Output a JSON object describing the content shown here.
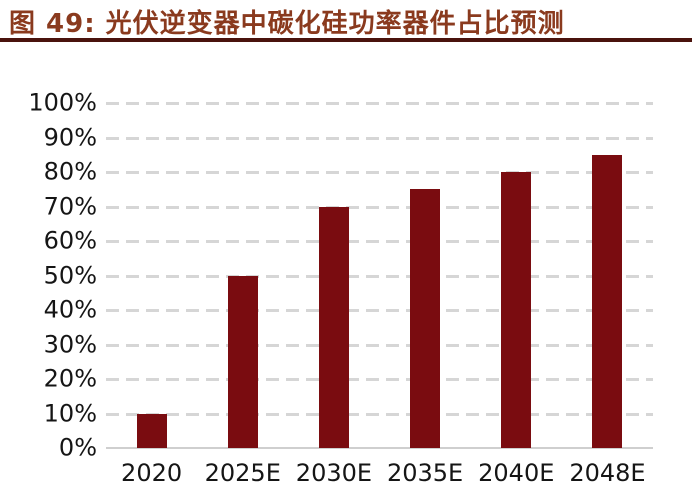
{
  "header": {
    "figure_label": "图 49:",
    "title": "光伏逆变器中碳化硅功率器件占比预测"
  },
  "colors": {
    "title_text": "#8a3a1e",
    "title_rule": "#4a130d",
    "bar": "#7a0c10",
    "gridline": "#d6d6d6",
    "axis_line": "#cfcfcf",
    "axis_text": "#151515",
    "background": "#ffffff"
  },
  "chart_data": {
    "type": "bar",
    "title": "光伏逆变器中碳化硅功率器件占比预测",
    "categories": [
      "2020",
      "2025E",
      "2030E",
      "2035E",
      "2040E",
      "2048E"
    ],
    "values": [
      10,
      50,
      70,
      75,
      80,
      85
    ],
    "unit": "%",
    "xlabel": "",
    "ylabel": "",
    "ylim": [
      0,
      100
    ],
    "ytick_step": 10,
    "ytick_labels": [
      "100%",
      "90%",
      "80%",
      "70%",
      "60%",
      "50%",
      "40%",
      "30%",
      "20%",
      "10%",
      "0%"
    ],
    "grid": "horizontal-dashed",
    "legend": "none",
    "bar_color": "#7a0c10"
  }
}
